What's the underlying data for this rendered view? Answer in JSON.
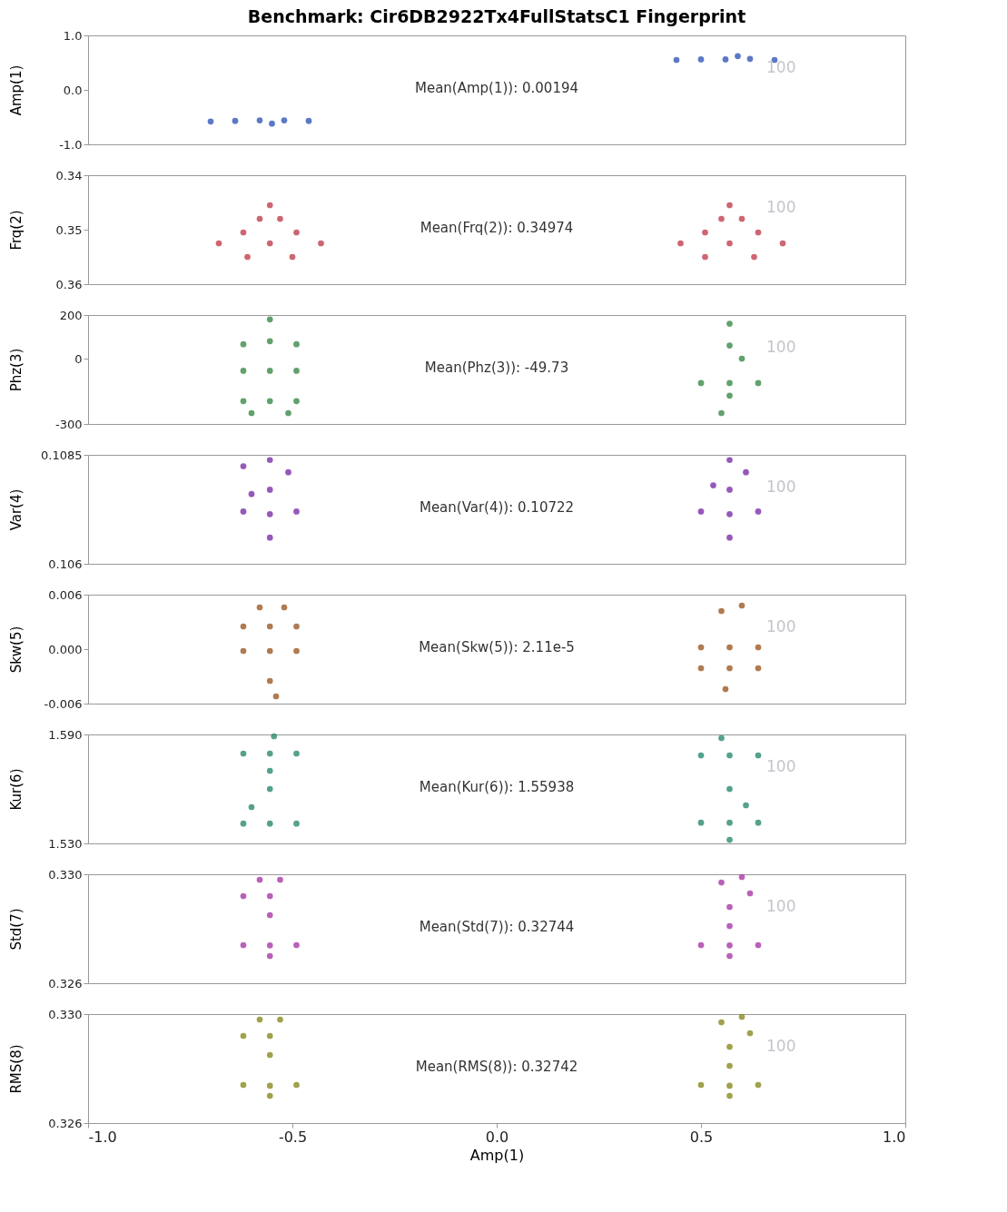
{
  "chart_data": [
    {
      "type": "scatter",
      "title": "Benchmark:  Cir6DB2922Tx4FullStatsC1 Fingerprint",
      "ylabel": "Amp(1)",
      "color": "#3558b8",
      "tick_labels": "y",
      "xlim": [
        -1,
        1
      ],
      "ylim": [
        -1,
        1
      ],
      "yticks": [
        {
          "value": -1,
          "label": "-1.0"
        },
        {
          "value": 0,
          "label": "0.0"
        },
        {
          "value": 1,
          "label": "1.0"
        }
      ],
      "x": [
        -0.7,
        -0.64,
        -0.58,
        -0.52,
        -0.46,
        -0.55,
        0.44,
        0.5,
        0.56,
        0.62,
        0.68,
        0.59
      ],
      "values": [
        -0.58,
        -0.57,
        -0.56,
        -0.56,
        -0.57,
        -0.62,
        0.55,
        0.56,
        0.56,
        0.57,
        0.55,
        0.62
      ],
      "annotations": [
        "Mean(Amp(1)): 0.00194",
        "100"
      ]
    },
    {
      "type": "scatter",
      "ylabel": "Frq(2)",
      "color": "#c0404f",
      "tick_labels": "y",
      "xlim": [
        -1,
        1
      ],
      "ylim": [
        0.36,
        0.34
      ],
      "yticks": [
        0.34,
        0.35,
        0.36
      ],
      "x": [
        -0.68,
        -0.62,
        -0.58,
        -0.555,
        -0.53,
        -0.49,
        -0.43,
        -0.5,
        -0.555,
        -0.61,
        0.45,
        0.51,
        0.55,
        0.57,
        0.6,
        0.64,
        0.7,
        0.63,
        0.57,
        0.51
      ],
      "values": [
        0.3525,
        0.3505,
        0.348,
        0.3455,
        0.348,
        0.3505,
        0.3525,
        0.355,
        0.3525,
        0.355,
        0.3525,
        0.3505,
        0.348,
        0.3455,
        0.348,
        0.3505,
        0.3525,
        0.355,
        0.3525,
        0.355
      ],
      "annotations": [
        "Mean(Frq(2)): 0.34974",
        "100"
      ]
    },
    {
      "type": "scatter",
      "ylabel": "Phz(3)",
      "color": "#3a8a48",
      "tick_labels": "y",
      "xlim": [
        -1,
        1
      ],
      "ylim": [
        -300,
        200
      ],
      "yticks": [
        -300,
        0,
        200
      ],
      "x": [
        -0.62,
        -0.49,
        -0.555,
        -0.555,
        -0.62,
        -0.49,
        -0.555,
        -0.62,
        -0.49,
        -0.555,
        -0.6,
        -0.51,
        0.57,
        0.5,
        0.64,
        0.57,
        0.57,
        0.57,
        0.55,
        0.6
      ],
      "values": [
        66,
        66,
        80,
        -56,
        -56,
        -56,
        -195,
        -195,
        -195,
        180,
        -250,
        -250,
        -112,
        -112,
        -112,
        -170,
        60,
        160,
        -250,
        0
      ],
      "annotations": [
        "Mean(Phz(3)): -49.73",
        "100"
      ]
    },
    {
      "type": "scatter",
      "ylabel": "Var(4)",
      "color": "#7b2fa8",
      "tick_labels": "y",
      "xlim": [
        -1,
        1
      ],
      "ylim": [
        0.106,
        0.1085
      ],
      "yticks": [
        0.106,
        0.1085
      ],
      "x": [
        -0.555,
        -0.62,
        -0.49,
        -0.555,
        -0.62,
        -0.555,
        -0.51,
        -0.555,
        -0.6,
        0.57,
        0.64,
        0.5,
        0.57,
        0.57,
        0.61,
        0.57,
        0.53
      ],
      "values": [
        0.10714,
        0.1072,
        0.1072,
        0.1066,
        0.10824,
        0.10838,
        0.1081,
        0.1077,
        0.1076,
        0.10714,
        0.1072,
        0.1072,
        0.1066,
        0.10838,
        0.1081,
        0.1077,
        0.1078
      ],
      "annotations": [
        "Mean(Var(4)): 0.10722",
        "100"
      ]
    },
    {
      "type": "scatter",
      "ylabel": "Skw(5)",
      "color": "#9c5a25",
      "tick_labels": "y",
      "xlim": [
        -1,
        1
      ],
      "ylim": [
        -0.006,
        0.006
      ],
      "yticks": [
        -0.006,
        {
          "value": 0,
          "label": "0.000"
        },
        0.006
      ],
      "x": [
        -0.555,
        -0.555,
        -0.62,
        -0.49,
        -0.58,
        -0.52,
        -0.555,
        -0.54,
        -0.62,
        -0.49,
        0.57,
        0.57,
        0.5,
        0.64,
        0.6,
        0.55,
        0.56,
        0.64,
        0.5
      ],
      "values": [
        0.0025,
        -0.0002,
        -0.0002,
        -0.0002,
        0.0046,
        0.0046,
        -0.0035,
        -0.0052,
        0.0025,
        0.0025,
        0.0002,
        -0.0021,
        -0.0021,
        -0.0021,
        0.0048,
        0.0042,
        -0.0044,
        0.0002,
        0.0002
      ],
      "annotations": [
        "Mean(Skw(5)): 2.11e-5",
        "100"
      ]
    },
    {
      "type": "scatter",
      "ylabel": "Kur(6)",
      "color": "#2a8a72",
      "tick_labels": "y",
      "xlim": [
        -1,
        1
      ],
      "ylim": [
        1.53,
        1.59
      ],
      "yticks": [
        {
          "value": 1.53,
          "label": "1.530"
        },
        {
          "value": 1.59,
          "label": "1.590"
        }
      ],
      "x": [
        -0.555,
        -0.62,
        -0.49,
        -0.555,
        -0.62,
        -0.49,
        -0.555,
        -0.6,
        -0.545,
        -0.555,
        0.57,
        0.5,
        0.64,
        0.57,
        0.5,
        0.64,
        0.57,
        0.55,
        0.61,
        0.57
      ],
      "values": [
        1.5795,
        1.5795,
        1.5795,
        1.5409,
        1.5409,
        1.5409,
        1.56,
        1.55,
        1.589,
        1.57,
        1.5785,
        1.5785,
        1.5785,
        1.5414,
        1.5414,
        1.5414,
        1.56,
        1.588,
        1.551,
        1.532
      ],
      "annotations": [
        "Mean(Kur(6)): 1.55938",
        "100"
      ]
    },
    {
      "type": "scatter",
      "ylabel": "Std(7)",
      "color": "#a83aa8",
      "tick_labels": "y",
      "xlim": [
        -1,
        1
      ],
      "ylim": [
        0.326,
        0.33
      ],
      "yticks": [
        0.326,
        {
          "value": 0.33,
          "label": "0.330"
        }
      ],
      "x": [
        -0.555,
        -0.62,
        -0.49,
        -0.555,
        -0.58,
        -0.53,
        -0.555,
        -0.555,
        -0.62,
        0.57,
        0.64,
        0.5,
        0.57,
        0.55,
        0.6,
        0.57,
        0.57,
        0.62
      ],
      "values": [
        0.32739,
        0.3274,
        0.3274,
        0.327,
        0.3298,
        0.3298,
        0.3292,
        0.3285,
        0.3292,
        0.32739,
        0.3274,
        0.3274,
        0.327,
        0.3297,
        0.3299,
        0.3288,
        0.3281,
        0.3293
      ],
      "annotations": [
        "Mean(Std(7)): 0.32744",
        "100"
      ]
    },
    {
      "type": "scatter",
      "ylabel": "RMS(8)",
      "xlabel": "Amp(1)",
      "color": "#8a8a20",
      "xlim": [
        -1,
        1
      ],
      "xticks": [
        {
          "value": -1,
          "label": "-1.0"
        },
        -0.5,
        {
          "value": 0,
          "label": "0.0"
        },
        0.5,
        {
          "value": 1,
          "label": "1.0"
        }
      ],
      "ylim": [
        0.326,
        0.33
      ],
      "yticks": [
        0.326,
        {
          "value": 0.33,
          "label": "0.330"
        }
      ],
      "x": [
        -0.555,
        -0.62,
        -0.49,
        -0.555,
        -0.58,
        -0.53,
        -0.555,
        -0.555,
        -0.62,
        0.57,
        0.64,
        0.5,
        0.57,
        0.55,
        0.6,
        0.57,
        0.57,
        0.62
      ],
      "values": [
        0.32737,
        0.3274,
        0.3274,
        0.327,
        0.3298,
        0.3298,
        0.3292,
        0.3285,
        0.3292,
        0.32737,
        0.3274,
        0.3274,
        0.327,
        0.3297,
        0.3299,
        0.3288,
        0.3281,
        0.3293
      ],
      "annotations": [
        "Mean(RMS(8)): 0.32742",
        "100"
      ]
    }
  ]
}
